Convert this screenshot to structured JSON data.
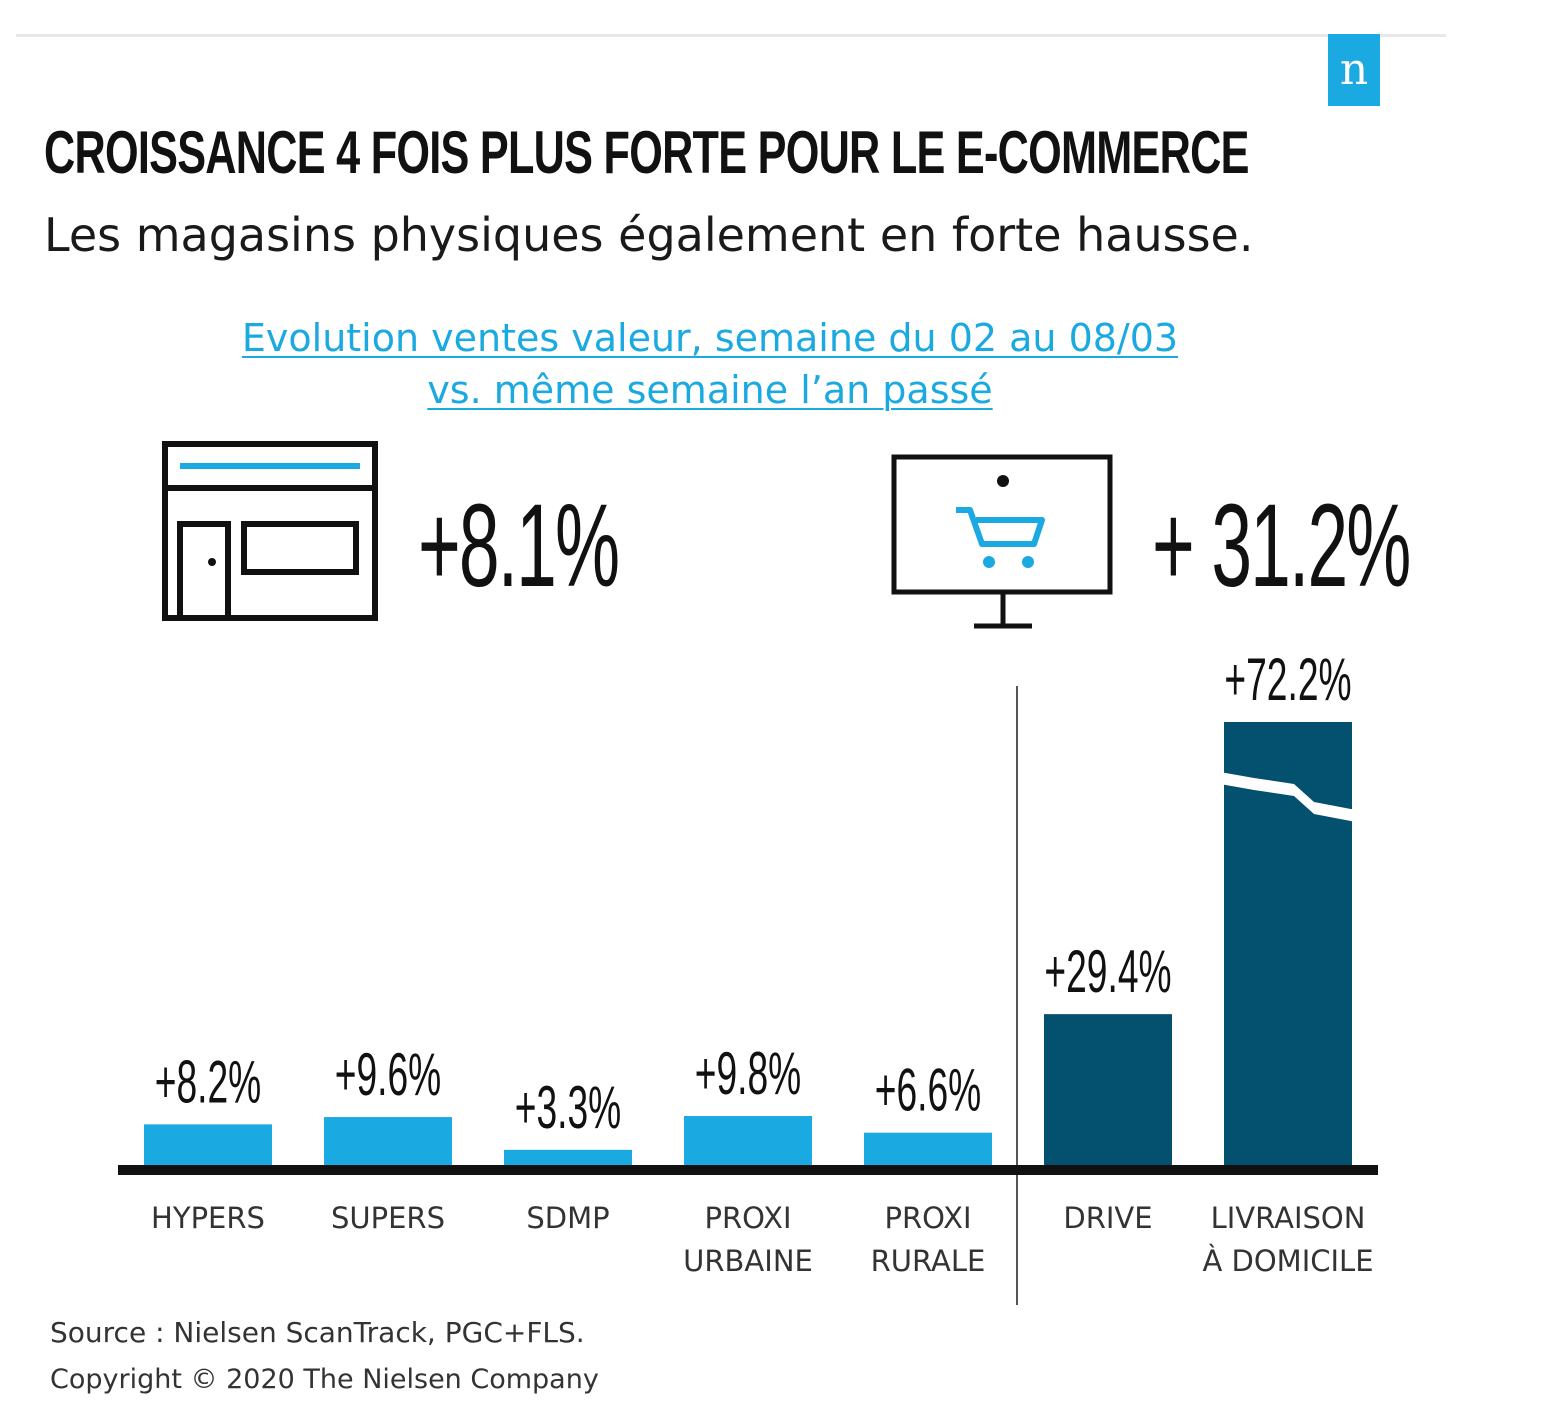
{
  "header": {
    "logo": "n",
    "title": "CROISSANCE 4 FOIS PLUS FORTE POUR LE E-COMMERCE",
    "subtitle": "Les magasins physiques également en forte hausse.",
    "note_line1": "Evolution ventes valeur, semaine du 02 au 08/03",
    "note_line2": "vs. même semaine l’an passé"
  },
  "kpis": {
    "stores": {
      "icon": "storefront-icon",
      "value": "+8.1%"
    },
    "online": {
      "icon": "computer-cart-icon",
      "value": "+ 31.2%"
    }
  },
  "chart_data": {
    "type": "bar",
    "title": "",
    "xlabel": "",
    "ylabel": "",
    "ylim": [
      0,
      72.2
    ],
    "grid": false,
    "categories": [
      "HYPERS",
      "SUPERS",
      "SDMP",
      "PROXI\nURBAINE",
      "PROXI\nRURALE",
      "DRIVE",
      "LIVRAISON\nÀ DOMICILE"
    ],
    "values": [
      8.2,
      9.6,
      3.3,
      9.8,
      6.6,
      29.4,
      72.2
    ],
    "data_labels": [
      "+8.2%",
      "+9.6%",
      "+3.3%",
      "+9.8%",
      "+6.6%",
      "+29.4%",
      "+72.2%"
    ],
    "groups": [
      "store",
      "store",
      "store",
      "store",
      "store",
      "online",
      "online"
    ],
    "axis_break_on": "LIVRAISON\nÀ DOMICILE",
    "colors": {
      "store": "#1ba9e1",
      "online": "#04516f",
      "axis": "#111111",
      "divider": "#555555"
    }
  },
  "footer": {
    "source": "Source : Nielsen ScanTrack, PGC+FLS.",
    "copyright": "Copyright © 2020 The Nielsen Company"
  }
}
